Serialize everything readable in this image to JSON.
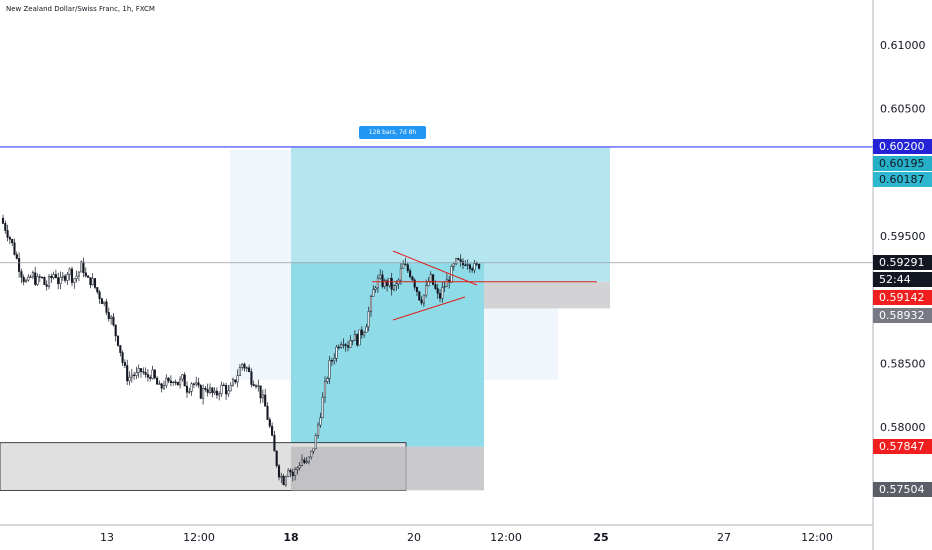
{
  "header": {
    "title": "New Zealand Dollar/Swiss Franc, 1h, FXCM"
  },
  "measure_label": "128 bars, 7d 8h",
  "colors": {
    "candle": "#131722",
    "hline": "#3a3aff",
    "trendline": "#e0201c",
    "tp_zone": "#b5e6f0",
    "tp_zone_inner": "#8fdbe8",
    "sl_zone": "#d3d3d6",
    "demand_zone": "#e0e0e0"
  },
  "price_tags": [
    {
      "value": "0.60200",
      "bg": "#2424d6",
      "fg": "#ffffff"
    },
    {
      "value": "0.60195",
      "bg": "#26b0c8",
      "fg": "#131722"
    },
    {
      "value": "0.60187",
      "bg": "#2eb8cf",
      "fg": "#131722"
    },
    {
      "value": "0.59291",
      "bg": "#131722",
      "fg": "#ffffff"
    },
    {
      "value": "52:44",
      "bg": "#131722",
      "fg": "#ffffff"
    },
    {
      "value": "0.59142",
      "bg": "#f01e1e",
      "fg": "#ffffff"
    },
    {
      "value": "0.58932",
      "bg": "#777a84",
      "fg": "#ffffff"
    },
    {
      "value": "0.57847",
      "bg": "#f01e1e",
      "fg": "#ffffff"
    },
    {
      "value": "0.57504",
      "bg": "#5b5e66",
      "fg": "#ffffff"
    }
  ],
  "chart_data": {
    "type": "candlestick",
    "title": "New Zealand Dollar/Swiss Franc, 1h, FXCM",
    "ylim": [
      0.573,
      0.6135
    ],
    "y_ticks": [
      "0.61000",
      "0.60500",
      "0.59500",
      "0.58500",
      "0.58000"
    ],
    "x_ticks": [
      {
        "label": "13",
        "bold": false
      },
      {
        "label": "12:00",
        "bold": false
      },
      {
        "label": "18",
        "bold": true
      },
      {
        "label": "20",
        "bold": false
      },
      {
        "label": "12:00",
        "bold": false
      },
      {
        "label": "25",
        "bold": true
      },
      {
        "label": "27",
        "bold": false
      },
      {
        "label": "12:00",
        "bold": false
      }
    ],
    "horizontal_line": 0.602,
    "last_price": 0.59291,
    "entry": 0.59142,
    "target": 0.60195,
    "stop": 0.58932,
    "demand_zone": [
      0.57504,
      0.57847
    ],
    "close_path": [
      0.5964,
      0.5958,
      0.595,
      0.594,
      0.5928,
      0.5918,
      0.5912,
      0.592,
      0.5914,
      0.5918,
      0.591,
      0.5916,
      0.5922,
      0.5912,
      0.5918,
      0.5924,
      0.5916,
      0.592,
      0.5928,
      0.5914,
      0.5916,
      0.5908,
      0.5902,
      0.5896,
      0.5888,
      0.5876,
      0.5866,
      0.5848,
      0.5838,
      0.5842,
      0.584,
      0.5845,
      0.5838,
      0.5843,
      0.5836,
      0.5829,
      0.5836,
      0.5833,
      0.584,
      0.5834,
      0.5838,
      0.583,
      0.5836,
      0.5831,
      0.5826,
      0.5832,
      0.5828,
      0.5824,
      0.583,
      0.5832,
      0.5826,
      0.5834,
      0.5842,
      0.585,
      0.5846,
      0.5838,
      0.5836,
      0.5826,
      0.5816,
      0.58,
      0.578,
      0.5765,
      0.5758,
      0.577,
      0.5762,
      0.5768,
      0.5775,
      0.577,
      0.5778,
      0.579,
      0.581,
      0.583,
      0.5848,
      0.5856,
      0.5866,
      0.587,
      0.5864,
      0.5872,
      0.5868,
      0.5874,
      0.588,
      0.5896,
      0.5912,
      0.5916,
      0.5912,
      0.5914,
      0.5908,
      0.5912,
      0.5927,
      0.5924,
      0.592,
      0.591,
      0.59,
      0.5905,
      0.5918,
      0.591,
      0.59,
      0.591,
      0.5915,
      0.5924,
      0.593,
      0.5926,
      0.5932,
      0.5928,
      0.5924,
      0.5929
    ],
    "close_path_x_range_px": [
      0,
      480
    ]
  }
}
